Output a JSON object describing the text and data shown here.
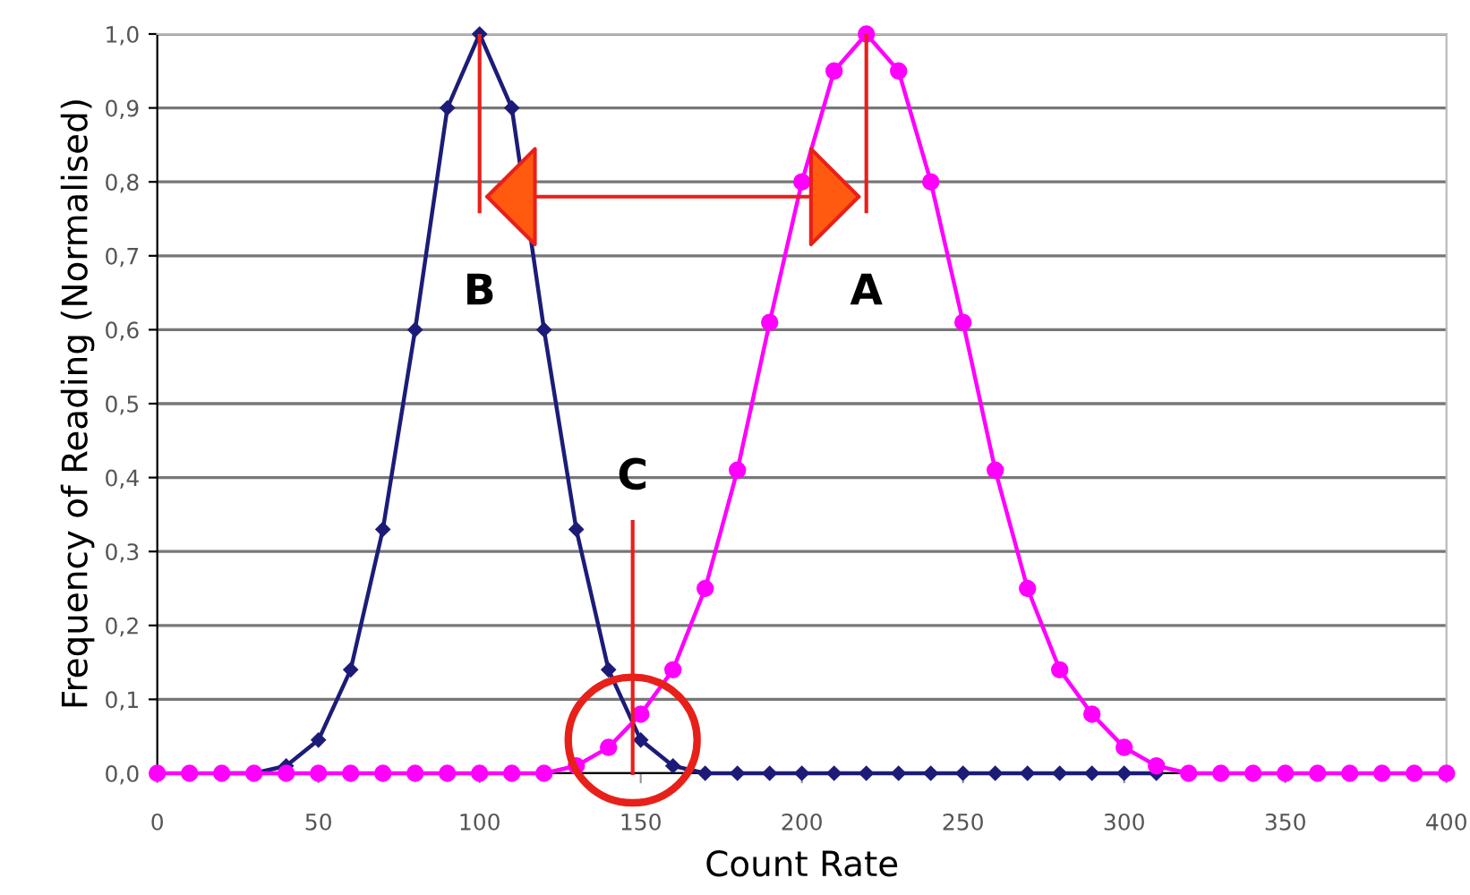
{
  "chart_data": {
    "type": "line",
    "xlabel": "Count Rate",
    "ylabel": "Frequency of Reading (Normalised)",
    "xlim": [
      0,
      400
    ],
    "xticks": [
      0,
      50,
      100,
      150,
      200,
      250,
      300,
      350,
      400
    ],
    "ylim": [
      0,
      1.0
    ],
    "yticks": [
      {
        "value": 0,
        "label": "0,0"
      },
      {
        "value": 0.1,
        "label": "0,1"
      },
      {
        "value": 0.2,
        "label": "0,2"
      },
      {
        "value": 0.3,
        "label": "0,3"
      },
      {
        "value": 0.4,
        "label": "0,4"
      },
      {
        "value": 0.5,
        "label": "0,5"
      },
      {
        "value": 0.6,
        "label": "0,6"
      },
      {
        "value": 0.7,
        "label": "0,7"
      },
      {
        "value": 0.8,
        "label": "0,8"
      },
      {
        "value": 0.9,
        "label": "0,9"
      },
      {
        "value": 1.0,
        "label": "1,0"
      }
    ],
    "grid": "y",
    "legend": false,
    "line_style": "solid",
    "series": [
      {
        "color": "#1c1c78",
        "marker": "diamond",
        "x": [
          20,
          30,
          40,
          50,
          60,
          70,
          80,
          90,
          100,
          110,
          120,
          130,
          140,
          150,
          160,
          170,
          180,
          190,
          200,
          210,
          220,
          230,
          240,
          250,
          260,
          270,
          280,
          290,
          300,
          310
        ],
        "values": [
          0,
          0,
          0.01,
          0.045,
          0.14,
          0.33,
          0.6,
          0.9,
          1.0,
          0.9,
          0.6,
          0.33,
          0.14,
          0.045,
          0.01,
          0,
          0,
          0,
          0,
          0,
          0,
          0,
          0,
          0,
          0,
          0,
          0,
          0,
          0,
          0
        ]
      },
      {
        "color": "#ff00ff",
        "marker": "circle",
        "x": [
          0,
          10,
          20,
          30,
          40,
          50,
          60,
          70,
          80,
          90,
          100,
          110,
          120,
          130,
          140,
          150,
          160,
          170,
          180,
          190,
          200,
          210,
          220,
          230,
          240,
          250,
          260,
          270,
          280,
          290,
          300,
          310,
          320,
          330,
          340,
          350,
          360,
          370,
          380,
          390,
          400
        ],
        "values": [
          0,
          0,
          0,
          0,
          0,
          0,
          0,
          0,
          0,
          0,
          0,
          0,
          0,
          0.01,
          0.035,
          0.08,
          0.14,
          0.25,
          0.41,
          0.61,
          0.8,
          0.95,
          1.0,
          0.95,
          0.8,
          0.61,
          0.41,
          0.25,
          0.14,
          0.08,
          0.035,
          0.01,
          0,
          0,
          0,
          0,
          0,
          0,
          0,
          0,
          0
        ]
      }
    ],
    "annotations": [
      "B",
      "A",
      "C"
    ]
  }
}
